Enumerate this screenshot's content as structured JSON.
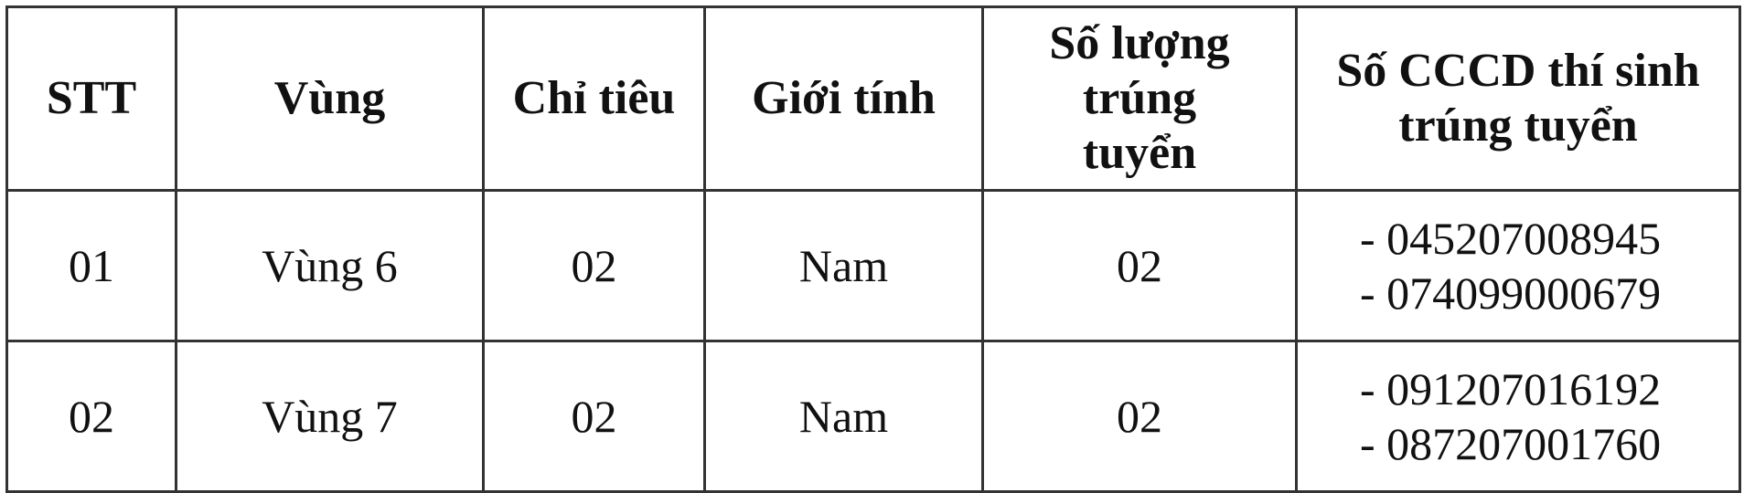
{
  "table": {
    "headers": [
      "STT",
      "Vùng",
      "Chỉ tiêu",
      "Giới tính",
      "Số lượng trúng tuyển",
      "Số CCCD thí sinh trúng tuyển"
    ],
    "rows": [
      {
        "stt": "01",
        "vung": "Vùng 6",
        "chi_tieu": "02",
        "gioi_tinh": "Nam",
        "so_luong": "02",
        "cccd": [
          "- 045207008945",
          "- 074099000679"
        ]
      },
      {
        "stt": "02",
        "vung": "Vùng 7",
        "chi_tieu": "02",
        "gioi_tinh": "Nam",
        "so_luong": "02",
        "cccd": [
          "- 091207016192",
          "- 087207001760"
        ]
      }
    ]
  }
}
